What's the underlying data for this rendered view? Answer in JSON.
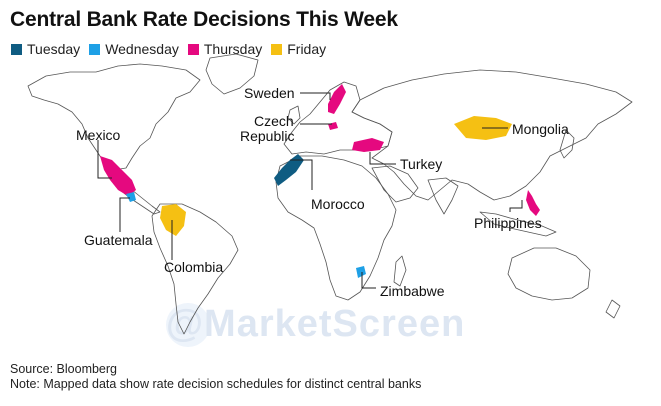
{
  "title": "Central Bank Rate Decisions This Week",
  "legend": [
    {
      "label": "Tuesday",
      "color": "#0f5c82"
    },
    {
      "label": "Wednesday",
      "color": "#1ea0e6"
    },
    {
      "label": "Thursday",
      "color": "#e5097f"
    },
    {
      "label": "Friday",
      "color": "#f5c013"
    }
  ],
  "countries": {
    "sweden": {
      "label": "Sweden",
      "day": "Thursday"
    },
    "czech": {
      "label_line1": "Czech",
      "label_line2": "Republic",
      "day": "Thursday"
    },
    "mongolia": {
      "label": "Mongolia",
      "day": "Friday"
    },
    "mexico": {
      "label": "Mexico",
      "day": "Thursday"
    },
    "turkey": {
      "label": "Turkey",
      "day": "Thursday"
    },
    "morocco": {
      "label": "Morocco",
      "day": "Tuesday"
    },
    "philippines": {
      "label": "Philippines",
      "day": "Thursday"
    },
    "guatemala": {
      "label": "Guatemala",
      "day": "Wednesday"
    },
    "colombia": {
      "label": "Colombia",
      "day": "Friday"
    },
    "zimbabwe": {
      "label": "Zimbabwe",
      "day": "Wednesday"
    }
  },
  "watermark": "@MarketScreen",
  "source": "Source: Bloomberg",
  "note": "Note: Mapped data show rate decision schedules for distinct central banks"
}
